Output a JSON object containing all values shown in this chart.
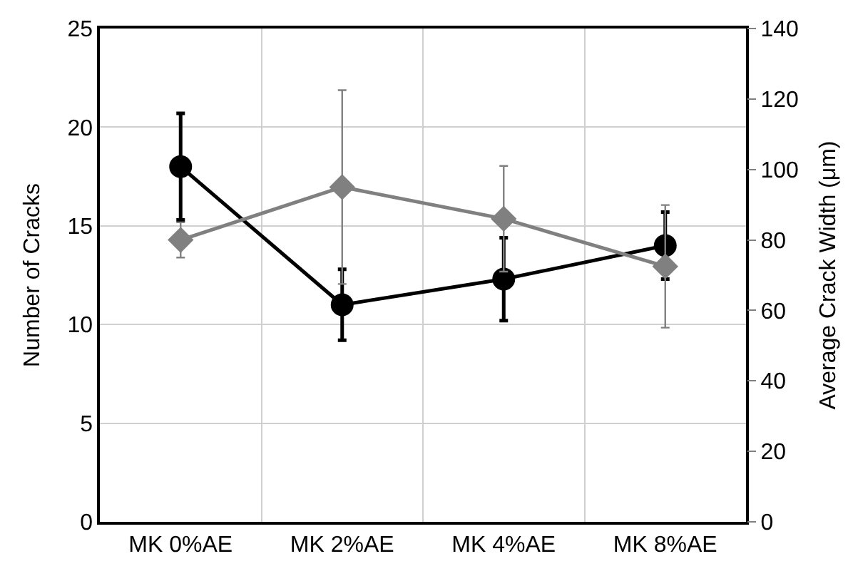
{
  "chart_data": {
    "type": "line",
    "categories": [
      "MK 0%AE",
      "MK 2%AE",
      "MK 4%AE",
      "MK 8%AE"
    ],
    "ylabel": "Number of Cracks",
    "y2label": "Average Crack Width (μm)",
    "ylim": [
      0,
      25
    ],
    "yticks": [
      0,
      5,
      10,
      15,
      20,
      25
    ],
    "y2lim": [
      0,
      140
    ],
    "y2ticks": [
      0,
      20,
      40,
      60,
      80,
      100,
      120,
      140
    ],
    "grid": true,
    "series": [
      {
        "color": "#000000",
        "marker": "circle",
        "values": [
          18.0,
          11.0,
          12.3,
          14.0
        ],
        "errors": [
          2.7,
          1.8,
          2.1,
          1.7
        ]
      },
      {
        "color": "#808080",
        "marker": "diamond",
        "axis": "y2",
        "values": [
          80,
          95,
          86,
          72.5
        ],
        "errors": [
          5,
          27.5,
          15,
          17.4
        ]
      }
    ]
  }
}
